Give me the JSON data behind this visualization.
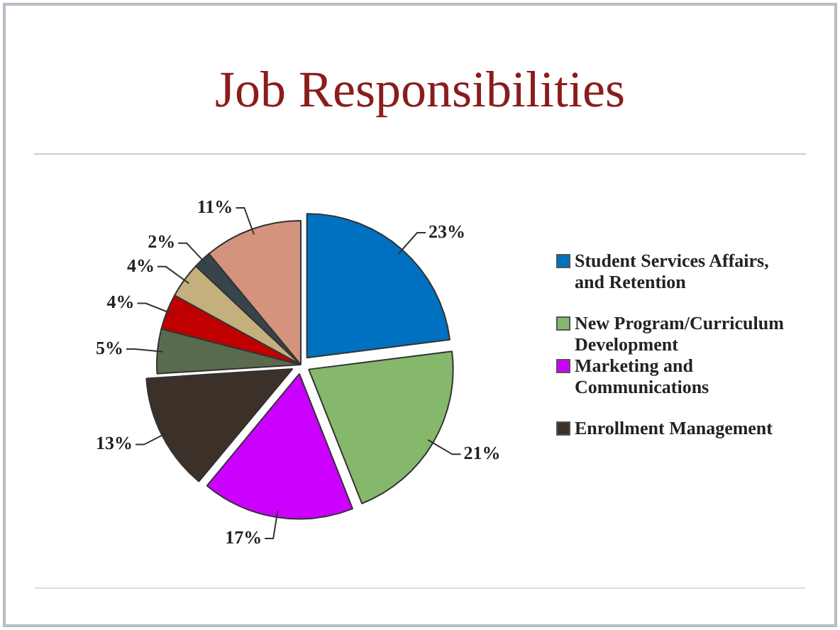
{
  "chart_data": {
    "type": "pie",
    "title": "Job Responsibilities",
    "categories": [
      "Student Services Affairs, and Retention",
      "New Program/Curriculum Development",
      "Marketing and Communications",
      "Enrollment Management",
      null,
      null,
      null,
      null,
      null
    ],
    "values": [
      23,
      21,
      17,
      13,
      5,
      4,
      4,
      2,
      11
    ],
    "colors": [
      "#0070c0",
      "#86b86c",
      "#cc00ff",
      "#3b3128",
      "#5a6b4d",
      "#c00000",
      "#c4b07c",
      "#37444a",
      "#d4937d"
    ],
    "value_labels": [
      "23%",
      "21%",
      "17%",
      "13%",
      "5%",
      "4%",
      "4%",
      "2%",
      "11%"
    ],
    "legend": "right"
  }
}
